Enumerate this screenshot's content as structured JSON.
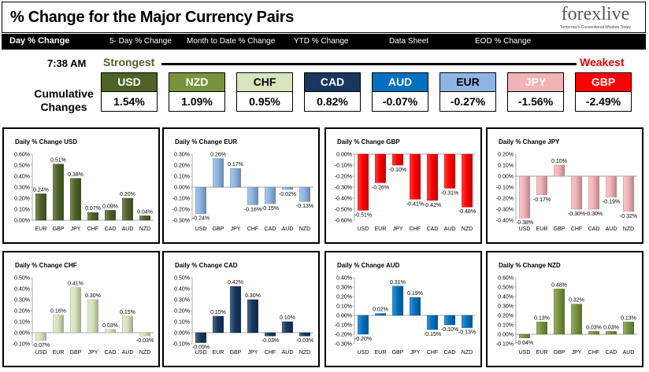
{
  "header": {
    "title": "% Change for the Major Currency Pairs",
    "logo": "forexlive",
    "logo_tagline": "Tomorrow's Conventional Wisdom Today"
  },
  "nav": [
    "Day % Change",
    "5- Day % Change",
    "Month to Date % Change",
    "YTD % Change",
    "Data Sheet",
    "EOD % Change"
  ],
  "time": "7:38 AM",
  "strongest_label": "Strongest",
  "weakest_label": "Weakest",
  "cumulative_label": "Cumulative Changes",
  "currencies": [
    {
      "name": "USD",
      "value": "1.54%",
      "bg": "#4f6228",
      "fg": "#ffffff"
    },
    {
      "name": "NZD",
      "value": "1.09%",
      "bg": "#77933c",
      "fg": "#ffffff"
    },
    {
      "name": "CHF",
      "value": "0.95%",
      "bg": "#d7e4bd",
      "fg": "#000000"
    },
    {
      "name": "CAD",
      "value": "0.82%",
      "bg": "#17375e",
      "fg": "#ffffff"
    },
    {
      "name": "AUD",
      "value": "-0.07%",
      "bg": "#0070c0",
      "fg": "#ffffff"
    },
    {
      "name": "EUR",
      "value": "-0.27%",
      "bg": "#8eb4e3",
      "fg": "#000000"
    },
    {
      "name": "JPY",
      "value": "-1.56%",
      "bg": "#f2b3b6",
      "fg": "#ffffff"
    },
    {
      "name": "GBP",
      "value": "-2.49%",
      "bg": "#ff0000",
      "fg": "#ffffff"
    }
  ],
  "chart_data": [
    {
      "type": "bar",
      "title": "Daily % Change USD",
      "categories": [
        "EUR",
        "GBP",
        "JPY",
        "CHF",
        "CAD",
        "AUD",
        "NZD"
      ],
      "values": [
        0.24,
        0.51,
        0.38,
        0.07,
        0.09,
        0.2,
        0.04
      ],
      "labels": [
        "0.24%",
        "0.51%",
        "0.38%",
        "0.07%",
        "0.09%",
        "0.20%",
        "0.04%"
      ],
      "ylim": [
        0,
        0.6
      ],
      "ticks": [
        0,
        0.1,
        0.2,
        0.3,
        0.4,
        0.5,
        0.6
      ],
      "tick_labels": [
        "0.00%",
        "0.10%",
        "0.20%",
        "0.30%",
        "0.40%",
        "0.50%",
        "0.60%"
      ],
      "color": "#4f6228"
    },
    {
      "type": "bar",
      "title": "Daily % Change EUR",
      "categories": [
        "USD",
        "GBP",
        "JPY",
        "CHF",
        "CAD",
        "AUD",
        "NZD"
      ],
      "values": [
        -0.24,
        0.26,
        0.17,
        -0.16,
        -0.15,
        -0.02,
        -0.13
      ],
      "labels": [
        "-0.24%",
        "0.26%",
        "0.17%",
        "-0.16%",
        "-0.15%",
        "-0.02%",
        "-0.13%"
      ],
      "ylim": [
        -0.3,
        0.3
      ],
      "ticks": [
        -0.3,
        -0.2,
        -0.1,
        0,
        0.1,
        0.2,
        0.3
      ],
      "tick_labels": [
        "-0.30%",
        "-0.20%",
        "-0.10%",
        "0.00%",
        "0.10%",
        "0.20%",
        "0.30%"
      ],
      "color": "#8eb4e3"
    },
    {
      "type": "bar",
      "title": "Daily % Change GBP",
      "categories": [
        "USD",
        "EUR",
        "JPY",
        "CHF",
        "CAD",
        "AUD",
        "NZD"
      ],
      "values": [
        -0.51,
        -0.26,
        -0.1,
        -0.41,
        -0.42,
        -0.31,
        -0.48
      ],
      "labels": [
        "-0.51%",
        "-0.26%",
        "-0.10%",
        "-0.41%",
        "-0.42%",
        "-0.31%",
        "-0.48%"
      ],
      "ylim": [
        -0.6,
        0
      ],
      "ticks": [
        -0.6,
        -0.5,
        -0.4,
        -0.3,
        -0.2,
        -0.1,
        0
      ],
      "tick_labels": [
        "-0.60%",
        "-0.50%",
        "-0.40%",
        "-0.30%",
        "-0.20%",
        "-0.10%",
        "0.00%"
      ],
      "color": "#ff0000"
    },
    {
      "type": "bar",
      "title": "Daily % Change JPY",
      "categories": [
        "USD",
        "EUR",
        "GBP",
        "CHF",
        "CAD",
        "AUD",
        "NZD"
      ],
      "values": [
        -0.38,
        -0.17,
        0.1,
        -0.3,
        -0.3,
        -0.19,
        -0.32
      ],
      "labels": [
        "-0.38%",
        "-0.17%",
        "0.10%",
        "-0.30%",
        "-0.30%",
        "-0.19%",
        "-0.32%"
      ],
      "ylim": [
        -0.4,
        0.2
      ],
      "ticks": [
        -0.4,
        -0.3,
        -0.2,
        -0.1,
        0,
        0.1,
        0.2
      ],
      "tick_labels": [
        "-0.40%",
        "-0.30%",
        "-0.20%",
        "-0.10%",
        "0.00%",
        "0.10%",
        "0.20%"
      ],
      "color": "#f2b3b6"
    },
    {
      "type": "bar",
      "title": "Daily % Change CHF",
      "categories": [
        "USD",
        "EUR",
        "GBP",
        "JPY",
        "CAD",
        "AUD",
        "NZD"
      ],
      "values": [
        -0.07,
        0.16,
        0.41,
        0.3,
        0.03,
        0.15,
        -0.03
      ],
      "labels": [
        "-0.07%",
        "0.16%",
        "0.41%",
        "0.30%",
        "0.03%",
        "0.15%",
        "-0.03%"
      ],
      "ylim": [
        -0.1,
        0.5
      ],
      "ticks": [
        -0.1,
        0,
        0.1,
        0.2,
        0.3,
        0.4,
        0.5
      ],
      "tick_labels": [
        "-0.10%",
        "0.00%",
        "0.10%",
        "0.20%",
        "0.30%",
        "0.40%",
        "0.50%"
      ],
      "color": "#d7e4bd"
    },
    {
      "type": "bar",
      "title": "Daily % Change CAD",
      "categories": [
        "USD",
        "EUR",
        "GBP",
        "JPY",
        "CHF",
        "AUD",
        "NZD"
      ],
      "values": [
        -0.09,
        0.15,
        0.42,
        0.3,
        -0.03,
        0.1,
        -0.03
      ],
      "labels": [
        "-0.09%",
        "0.15%",
        "0.42%",
        "0.30%",
        "-0.03%",
        "0.10%",
        "-0.03%"
      ],
      "ylim": [
        -0.1,
        0.5
      ],
      "ticks": [
        -0.1,
        0,
        0.1,
        0.2,
        0.3,
        0.4,
        0.5
      ],
      "tick_labels": [
        "-0.10%",
        "0.00%",
        "0.10%",
        "0.20%",
        "0.30%",
        "0.40%",
        "0.50%"
      ],
      "color": "#17375e"
    },
    {
      "type": "bar",
      "title": "Daily % Change AUD",
      "categories": [
        "USD",
        "EUR",
        "GBP",
        "JPY",
        "CHF",
        "CAD",
        "NZD"
      ],
      "values": [
        -0.2,
        0.02,
        0.31,
        0.19,
        -0.15,
        -0.1,
        -0.13
      ],
      "labels": [
        "-0.20%",
        "0.02%",
        "0.31%",
        "0.19%",
        "-0.15%",
        "-0.10%",
        "-0.13%"
      ],
      "ylim": [
        -0.3,
        0.4
      ],
      "ticks": [
        -0.3,
        -0.2,
        -0.1,
        0,
        0.1,
        0.2,
        0.3,
        0.4
      ],
      "tick_labels": [
        "-0.30%",
        "-0.20%",
        "-0.10%",
        "0.00%",
        "0.10%",
        "0.20%",
        "0.30%",
        "0.40%"
      ],
      "color": "#0070c0"
    },
    {
      "type": "bar",
      "title": "Daily % Change NZD",
      "categories": [
        "USD",
        "EUR",
        "GBP",
        "JPY",
        "CHF",
        "CAD",
        "AUD"
      ],
      "values": [
        -0.04,
        0.13,
        0.48,
        0.32,
        0.03,
        0.03,
        0.13
      ],
      "labels": [
        "-0.04%",
        "0.13%",
        "0.48%",
        "0.32%",
        "0.03%",
        "0.03%",
        "0.13%"
      ],
      "ylim": [
        -0.1,
        0.6
      ],
      "ticks": [
        -0.1,
        0,
        0.1,
        0.2,
        0.3,
        0.4,
        0.5,
        0.6
      ],
      "tick_labels": [
        "-0.10%",
        "0.00%",
        "0.10%",
        "0.20%",
        "0.30%",
        "0.40%",
        "0.50%",
        "0.60%"
      ],
      "color": "#77933c"
    }
  ]
}
